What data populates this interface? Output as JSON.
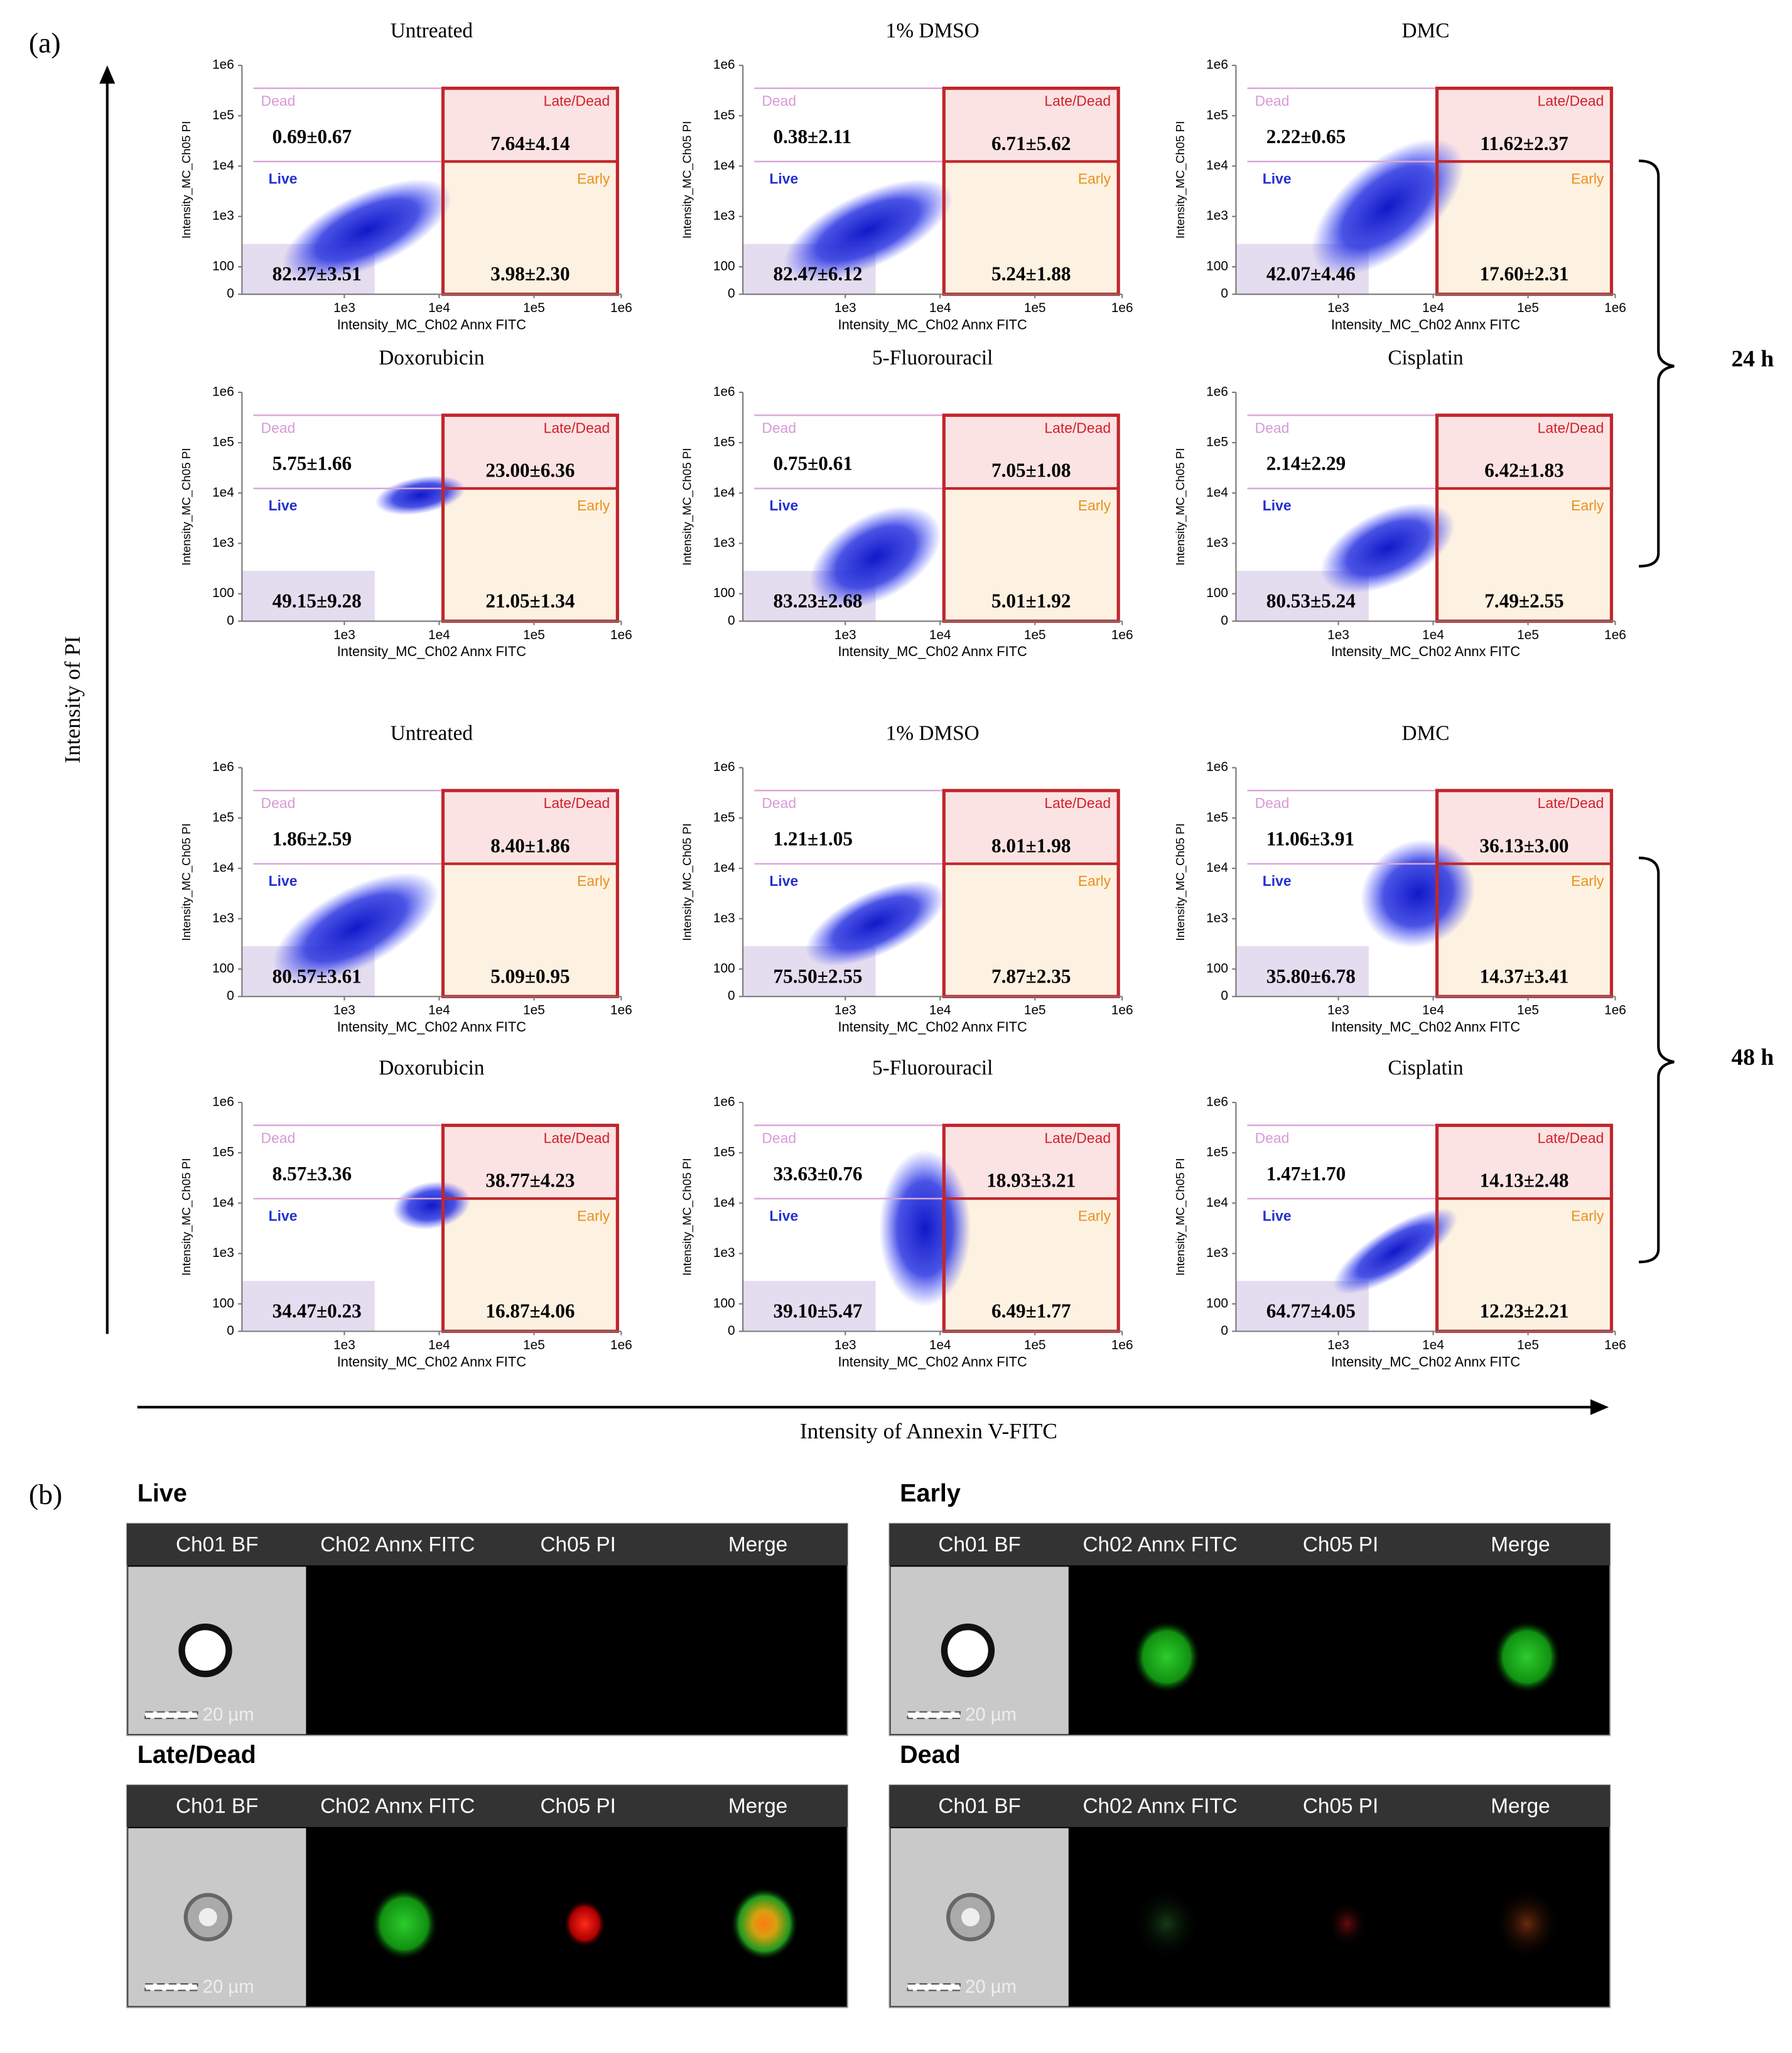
{
  "figure_a": {
    "label": "(a)",
    "y_axis_label": "Intensity of PI",
    "x_axis_label": "Intensity of Annexin V-FITC",
    "time_labels": [
      "24 h",
      "48 h"
    ],
    "plot_y_label": "Intensity_MC_Ch05 PI",
    "plot_x_label": "Intensity_MC_Ch02 Annx FITC",
    "y_ticks": [
      "1e6",
      "1e5",
      "1e4",
      "1e3",
      "100",
      "0"
    ],
    "x_ticks": [
      "1e3",
      "1e4",
      "1e5",
      "1e6"
    ],
    "gates": {
      "dead": "Dead",
      "live": "Live",
      "late": "Late/Dead",
      "early": "Early"
    },
    "panels": [
      {
        "title": "Untreated",
        "dead": "0.69±0.67",
        "late": "7.64±4.14",
        "live": "82.27±3.51",
        "early": "3.98±2.30"
      },
      {
        "title": "1% DMSO",
        "dead": "0.38±2.11",
        "late": "6.71±5.62",
        "live": "82.47±6.12",
        "early": "5.24±1.88"
      },
      {
        "title": "DMC",
        "dead": "2.22±0.65",
        "late": "11.62±2.37",
        "live": "42.07±4.46",
        "early": "17.60±2.31"
      },
      {
        "title": "Doxorubicin",
        "dead": "5.75±1.66",
        "late": "23.00±6.36",
        "live": "49.15±9.28",
        "early": "21.05±1.34"
      },
      {
        "title": "5-Fluorouracil",
        "dead": "0.75±0.61",
        "late": "7.05±1.08",
        "live": "83.23±2.68",
        "early": "5.01±1.92"
      },
      {
        "title": "Cisplatin",
        "dead": "2.14±2.29",
        "late": "6.42±1.83",
        "live": "80.53±5.24",
        "early": "7.49±2.55"
      },
      {
        "title": "Untreated",
        "dead": "1.86±2.59",
        "late": "8.40±1.86",
        "live": "80.57±3.61",
        "early": "5.09±0.95"
      },
      {
        "title": "1% DMSO",
        "dead": "1.21±1.05",
        "late": "8.01±1.98",
        "live": "75.50±2.55",
        "early": "7.87±2.35"
      },
      {
        "title": "DMC",
        "dead": "11.06±3.91",
        "late": "36.13±3.00",
        "live": "35.80±6.78",
        "early": "14.37±3.41"
      },
      {
        "title": "Doxorubicin",
        "dead": "8.57±3.36",
        "late": "38.77±4.23",
        "live": "34.47±0.23",
        "early": "16.87±4.06"
      },
      {
        "title": "5-Fluorouracil",
        "dead": "33.63±0.76",
        "late": "18.93±3.21",
        "live": "39.10±5.47",
        "early": "6.49±1.77"
      },
      {
        "title": "Cisplatin",
        "dead": "1.47±1.70",
        "late": "14.13±2.48",
        "live": "64.77±4.05",
        "early": "12.23±2.21"
      }
    ]
  },
  "figure_b": {
    "label": "(b)",
    "channels": [
      "Ch01 BF",
      "Ch02 Annx FITC",
      "Ch05 PI",
      "Merge"
    ],
    "scale": "20 µm",
    "groups": [
      {
        "title": "Live"
      },
      {
        "title": "Early"
      },
      {
        "title": "Late/Dead"
      },
      {
        "title": "Dead"
      }
    ]
  }
}
